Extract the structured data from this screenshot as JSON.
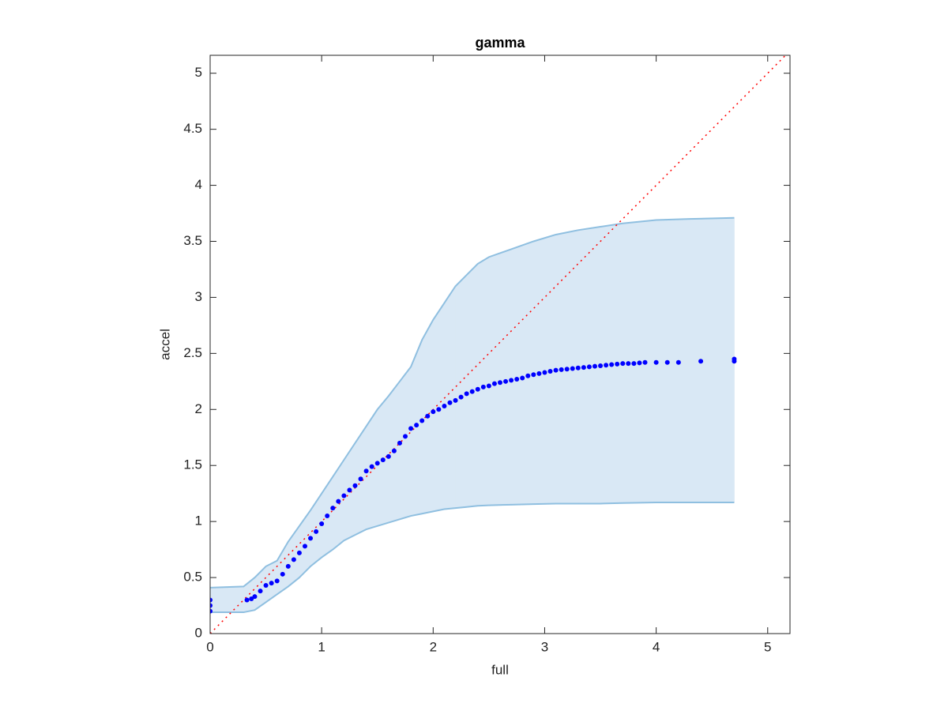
{
  "chart_data": {
    "type": "qq",
    "title": "gamma",
    "x_label": "full",
    "y_label": "accel",
    "xlim": [
      0,
      5.2
    ],
    "ylim": [
      0,
      5.16
    ],
    "xticks": [
      0,
      1,
      2,
      3,
      4,
      5
    ],
    "yticks": [
      0,
      0.5,
      1,
      1.5,
      2,
      2.5,
      3,
      3.5,
      4,
      4.5,
      5
    ],
    "grid": false,
    "points": {
      "color": "#0000ff",
      "x": [
        0,
        0,
        0,
        0.33,
        0.37,
        0.4,
        0.45,
        0.5,
        0.55,
        0.6,
        0.65,
        0.7,
        0.75,
        0.8,
        0.85,
        0.9,
        0.95,
        1.0,
        1.05,
        1.1,
        1.15,
        1.2,
        1.25,
        1.3,
        1.35,
        1.4,
        1.45,
        1.5,
        1.55,
        1.6,
        1.65,
        1.7,
        1.75,
        1.8,
        1.85,
        1.9,
        1.95,
        2.0,
        2.05,
        2.1,
        2.15,
        2.2,
        2.25,
        2.3,
        2.35,
        2.4,
        2.45,
        2.5,
        2.55,
        2.6,
        2.65,
        2.7,
        2.75,
        2.8,
        2.85,
        2.9,
        2.95,
        3.0,
        3.05,
        3.1,
        3.15,
        3.2,
        3.25,
        3.3,
        3.35,
        3.4,
        3.45,
        3.5,
        3.55,
        3.6,
        3.65,
        3.7,
        3.75,
        3.8,
        3.85,
        3.9,
        4.0,
        4.1,
        4.2,
        4.4,
        4.7,
        4.7
      ],
      "y": [
        0.2,
        0.25,
        0.3,
        0.3,
        0.31,
        0.33,
        0.38,
        0.43,
        0.45,
        0.47,
        0.53,
        0.6,
        0.66,
        0.72,
        0.78,
        0.85,
        0.91,
        0.98,
        1.05,
        1.12,
        1.18,
        1.23,
        1.28,
        1.32,
        1.38,
        1.45,
        1.49,
        1.52,
        1.55,
        1.58,
        1.63,
        1.7,
        1.76,
        1.83,
        1.86,
        1.9,
        1.94,
        1.98,
        2.0,
        2.03,
        2.06,
        2.08,
        2.11,
        2.14,
        2.16,
        2.18,
        2.2,
        2.21,
        2.23,
        2.24,
        2.25,
        2.26,
        2.27,
        2.28,
        2.3,
        2.31,
        2.32,
        2.33,
        2.34,
        2.35,
        2.355,
        2.36,
        2.365,
        2.37,
        2.375,
        2.38,
        2.385,
        2.39,
        2.395,
        2.4,
        2.405,
        2.41,
        2.41,
        2.41,
        2.415,
        2.42,
        2.42,
        2.42,
        2.42,
        2.43,
        2.43,
        2.45
      ]
    },
    "band": {
      "color": "#8fbfe0",
      "fill": "#d9e8f5",
      "x": [
        0,
        0.3,
        0.4,
        0.5,
        0.6,
        0.7,
        0.8,
        0.9,
        1.0,
        1.1,
        1.2,
        1.3,
        1.4,
        1.5,
        1.6,
        1.7,
        1.8,
        1.9,
        2.0,
        2.1,
        2.2,
        2.3,
        2.4,
        2.5,
        2.7,
        2.9,
        3.1,
        3.3,
        3.5,
        3.7,
        4.0,
        4.3,
        4.7
      ],
      "upper": [
        0.41,
        0.42,
        0.5,
        0.6,
        0.65,
        0.82,
        0.96,
        1.1,
        1.25,
        1.4,
        1.55,
        1.7,
        1.85,
        2.0,
        2.12,
        2.25,
        2.38,
        2.62,
        2.8,
        2.95,
        3.1,
        3.2,
        3.3,
        3.36,
        3.43,
        3.5,
        3.56,
        3.6,
        3.63,
        3.66,
        3.69,
        3.7,
        3.71
      ],
      "lower": [
        0.19,
        0.19,
        0.21,
        0.28,
        0.35,
        0.42,
        0.5,
        0.6,
        0.68,
        0.75,
        0.83,
        0.88,
        0.93,
        0.96,
        0.99,
        1.02,
        1.05,
        1.07,
        1.09,
        1.11,
        1.12,
        1.13,
        1.14,
        1.145,
        1.15,
        1.155,
        1.16,
        1.16,
        1.16,
        1.165,
        1.17,
        1.17,
        1.17
      ]
    },
    "reference_line": {
      "color": "#ff0000",
      "x": [
        0,
        5.2
      ],
      "y": [
        0,
        5.2
      ]
    }
  }
}
